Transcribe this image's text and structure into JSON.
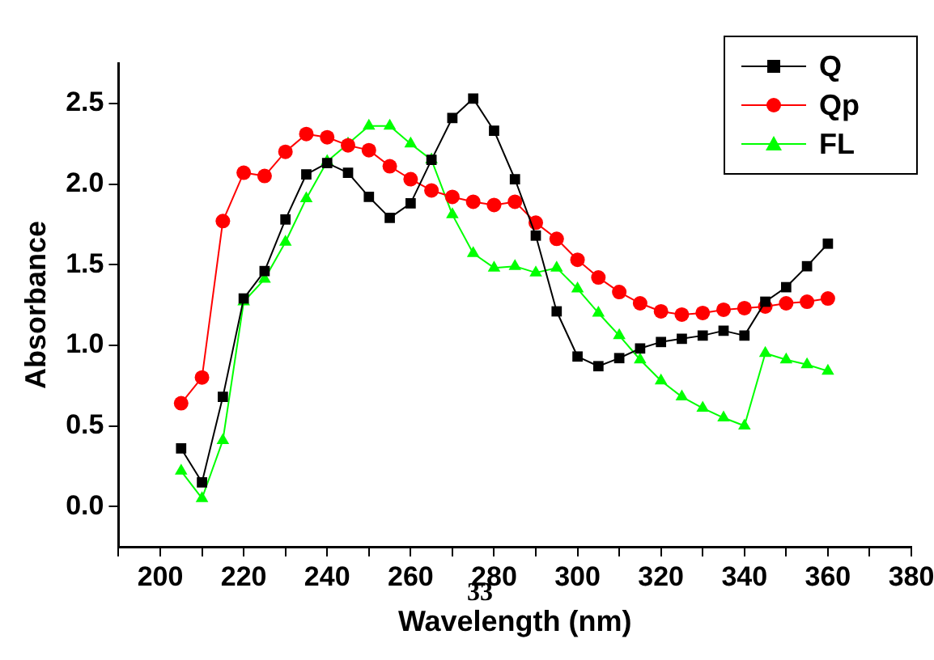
{
  "chart_data": {
    "type": "line",
    "xlabel": "Wavelength (nm)",
    "ylabel": "Absorbance",
    "annotations": [
      "33"
    ],
    "x": [
      205,
      210,
      215,
      220,
      225,
      230,
      235,
      240,
      245,
      250,
      255,
      260,
      265,
      270,
      275,
      280,
      285,
      290,
      295,
      300,
      305,
      310,
      315,
      320,
      325,
      330,
      335,
      340,
      345,
      350,
      355,
      360
    ],
    "series": [
      {
        "name": "Q",
        "color": "#000000",
        "marker": "square",
        "values": [
          0.36,
          0.15,
          0.68,
          1.29,
          1.46,
          1.78,
          2.06,
          2.13,
          2.07,
          1.92,
          1.79,
          1.88,
          2.15,
          2.41,
          2.53,
          2.33,
          2.03,
          1.68,
          1.21,
          0.93,
          0.87,
          0.92,
          0.98,
          1.02,
          1.04,
          1.06,
          1.09,
          1.06,
          1.27,
          1.36,
          1.49,
          1.63
        ]
      },
      {
        "name": "Qp",
        "color": "#ff0000",
        "marker": "circle",
        "values": [
          0.64,
          0.8,
          1.77,
          2.07,
          2.05,
          2.2,
          2.31,
          2.29,
          2.24,
          2.21,
          2.11,
          2.03,
          1.96,
          1.92,
          1.89,
          1.87,
          1.89,
          1.76,
          1.66,
          1.53,
          1.42,
          1.33,
          1.26,
          1.21,
          1.19,
          1.2,
          1.22,
          1.23,
          1.24,
          1.26,
          1.27,
          1.29
        ]
      },
      {
        "name": "FL",
        "color": "#00ff00",
        "marker": "triangle",
        "values": [
          0.22,
          0.05,
          0.41,
          1.27,
          1.41,
          1.64,
          1.91,
          2.14,
          2.25,
          2.36,
          2.36,
          2.25,
          2.15,
          1.81,
          1.57,
          1.48,
          1.49,
          1.45,
          1.48,
          1.35,
          1.2,
          1.06,
          0.91,
          0.78,
          0.68,
          0.61,
          0.55,
          0.5,
          0.95,
          0.91,
          0.88,
          0.84
        ]
      }
    ],
    "xlim": [
      190,
      380
    ],
    "xticks": [
      {
        "value": 190,
        "label": null
      },
      200,
      {
        "value": 210,
        "label": null
      },
      220,
      {
        "value": 230,
        "label": null
      },
      240,
      {
        "value": 250,
        "label": null
      },
      260,
      {
        "value": 270,
        "label": null
      },
      280,
      {
        "value": 290,
        "label": null
      },
      300,
      {
        "value": 310,
        "label": null
      },
      320,
      {
        "value": 330,
        "label": null
      },
      340,
      {
        "value": 350,
        "label": null
      },
      360,
      {
        "value": 370,
        "label": null
      },
      380
    ],
    "ylim": [
      -0.25,
      2.75
    ],
    "yticks": [
      {
        "value": 0,
        "label": "0.0"
      },
      {
        "value": 0.5,
        "label": "0.5"
      },
      {
        "value": 1,
        "label": "1.0"
      },
      {
        "value": 1.5,
        "label": "1.5"
      },
      {
        "value": 2,
        "label": "2.0"
      },
      {
        "value": 2.5,
        "label": "2.5"
      }
    ],
    "grid": false,
    "legend": "top right",
    "line_style": "solid"
  }
}
